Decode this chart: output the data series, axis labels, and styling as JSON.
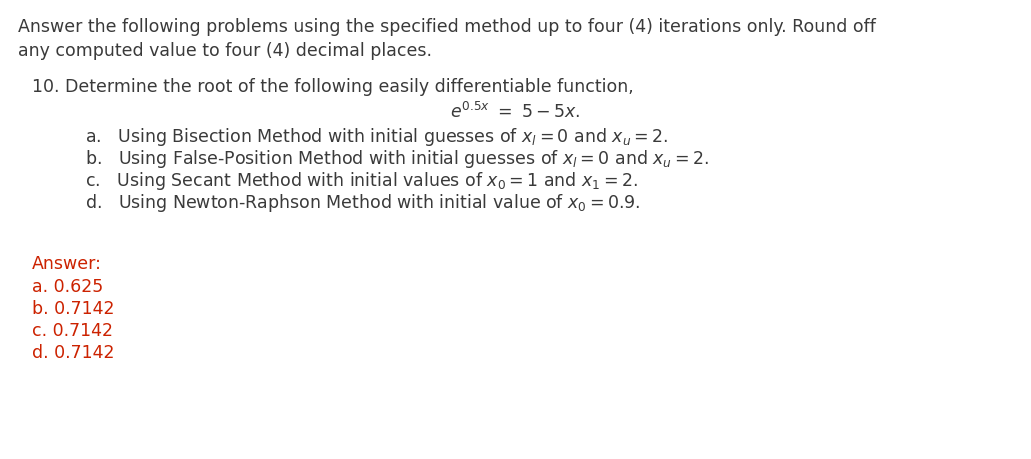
{
  "bg_color": "#ffffff",
  "figsize": [
    10.31,
    4.6
  ],
  "dpi": 100,
  "intro_line1": "Answer the following problems using the specified method up to four (4) iterations only. Round off",
  "intro_line2": "any computed value to four (4) decimal places.",
  "problem_line": "10. Determine the root of the following easily differentiable function,",
  "answer_label": "Answer:",
  "answer_a": "a. 0.625",
  "answer_b": "b. 0.7142",
  "answer_c": "c. 0.7142",
  "answer_d": "d. 0.7142",
  "text_color": "#3a3a3a",
  "answer_color": "#cc2200",
  "fontsize": 12.5
}
